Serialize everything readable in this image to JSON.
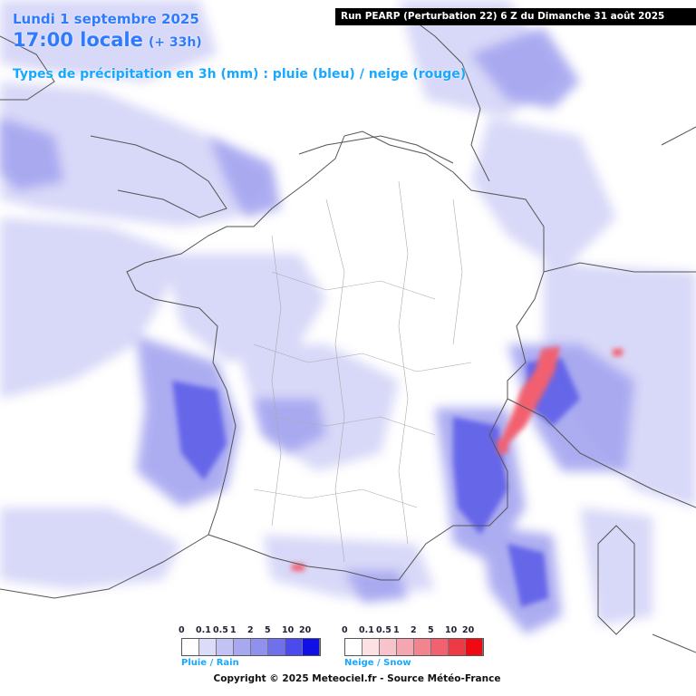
{
  "header": {
    "date": "Lundi 1 septembre 2025",
    "time": "17:00 locale",
    "lead": "(+ 33h)",
    "subtitle": "Types de précipitation en 3h (mm) : pluie (bleu) / neige (rouge)",
    "run": "Run PEARP (Perturbation 22) 6 Z du Dimanche 31 août 2025"
  },
  "legend": {
    "rain": {
      "title": "Pluie / Rain",
      "ticks": [
        "0",
        "0.1",
        "0.5",
        "1",
        "2",
        "5",
        "10",
        "20"
      ],
      "colors": [
        "#ffffff",
        "#dcdcf8",
        "#c2c2f4",
        "#a8a8f0",
        "#9090ee",
        "#7070ea",
        "#4a4aee",
        "#1010e6"
      ]
    },
    "snow": {
      "title": "Neige / Snow",
      "ticks": [
        "0",
        "0.1",
        "0.5",
        "1",
        "2",
        "5",
        "10",
        "20"
      ],
      "colors": [
        "#ffffff",
        "#fbe0e4",
        "#f8c4cc",
        "#f5a6b0",
        "#f28490",
        "#f06270",
        "#ee3a44",
        "#ee0a10"
      ]
    }
  },
  "copyright": "Copyright © 2025 Meteociel.fr - Source Météo-France"
}
